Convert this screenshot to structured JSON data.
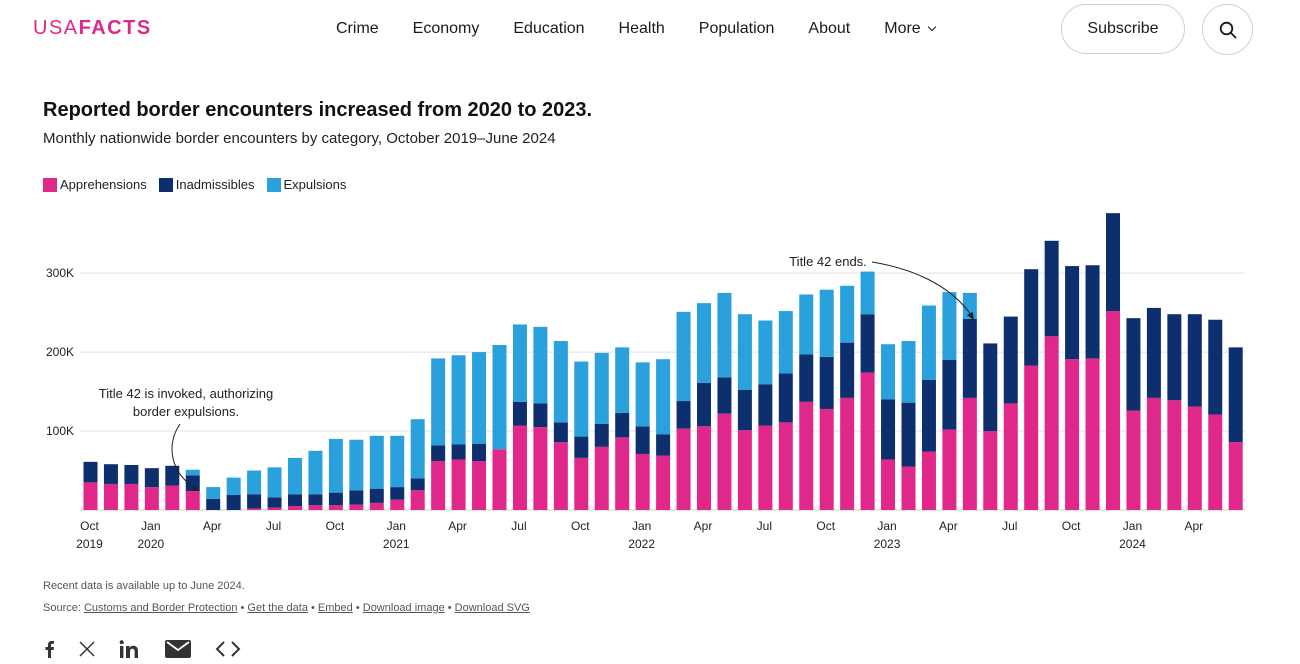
{
  "header": {
    "logo_light": "USA",
    "logo_bold": "FACTS",
    "nav": [
      "Crime",
      "Economy",
      "Education",
      "Health",
      "Population",
      "About",
      "More"
    ],
    "subscribe_label": "Subscribe"
  },
  "chart_title": "Reported border encounters increased from 2020 to 2023.",
  "chart_subtitle": "Monthly nationwide border encounters by category, October 2019–June 2024",
  "footer": {
    "note": "Recent data is available up to June 2024.",
    "source_prefix": "Source: ",
    "source_link": "Customs and Border Protection",
    "links": [
      "Get the data",
      "Embed",
      "Download image",
      "Download SVG"
    ],
    "separator": " • "
  },
  "colors": {
    "apprehensions": "#e0288a",
    "inadmissibles": "#0d2f6e",
    "expulsions": "#2aa0dc"
  },
  "chart_data": {
    "type": "bar",
    "stacked": true,
    "ylim": [
      0,
      380000
    ],
    "yticks": [
      100000,
      200000,
      300000
    ],
    "ytick_labels": [
      "100K",
      "200K",
      "300K"
    ],
    "grid": true,
    "legend_position": "top-left",
    "categories": [
      "Oct 2019",
      "Nov 2019",
      "Dec 2019",
      "Jan 2020",
      "Feb 2020",
      "Mar 2020",
      "Apr 2020",
      "May 2020",
      "Jun 2020",
      "Jul 2020",
      "Aug 2020",
      "Sep 2020",
      "Oct 2020",
      "Nov 2020",
      "Dec 2020",
      "Jan 2021",
      "Feb 2021",
      "Mar 2021",
      "Apr 2021",
      "May 2021",
      "Jun 2021",
      "Jul 2021",
      "Aug 2021",
      "Sep 2021",
      "Oct 2021",
      "Nov 2021",
      "Dec 2021",
      "Jan 2022",
      "Feb 2022",
      "Mar 2022",
      "Apr 2022",
      "May 2022",
      "Jun 2022",
      "Jul 2022",
      "Aug 2022",
      "Sep 2022",
      "Oct 2022",
      "Nov 2022",
      "Dec 2022",
      "Jan 2023",
      "Feb 2023",
      "Mar 2023",
      "Apr 2023",
      "May 2023",
      "Jun 2023",
      "Jul 2023",
      "Aug 2023",
      "Sep 2023",
      "Oct 2023",
      "Nov 2023",
      "Dec 2023",
      "Jan 2024",
      "Feb 2024",
      "Mar 2024",
      "Apr 2024",
      "May 2024",
      "Jun 2024"
    ],
    "x_tick_labels": [
      {
        "index": 0,
        "month": "Oct",
        "year": "2019"
      },
      {
        "index": 3,
        "month": "Jan",
        "year": "2020"
      },
      {
        "index": 6,
        "month": "Apr",
        "year": ""
      },
      {
        "index": 9,
        "month": "Jul",
        "year": ""
      },
      {
        "index": 12,
        "month": "Oct",
        "year": ""
      },
      {
        "index": 15,
        "month": "Jan",
        "year": "2021"
      },
      {
        "index": 18,
        "month": "Apr",
        "year": ""
      },
      {
        "index": 21,
        "month": "Jul",
        "year": ""
      },
      {
        "index": 24,
        "month": "Oct",
        "year": ""
      },
      {
        "index": 27,
        "month": "Jan",
        "year": "2022"
      },
      {
        "index": 30,
        "month": "Apr",
        "year": ""
      },
      {
        "index": 33,
        "month": "Jul",
        "year": ""
      },
      {
        "index": 36,
        "month": "Oct",
        "year": ""
      },
      {
        "index": 39,
        "month": "Jan",
        "year": "2023"
      },
      {
        "index": 42,
        "month": "Apr",
        "year": ""
      },
      {
        "index": 45,
        "month": "Jul",
        "year": ""
      },
      {
        "index": 48,
        "month": "Oct",
        "year": ""
      },
      {
        "index": 51,
        "month": "Jan",
        "year": "2024"
      },
      {
        "index": 54,
        "month": "Apr",
        "year": ""
      }
    ],
    "series": [
      {
        "name": "Apprehensions",
        "values": [
          35000,
          33000,
          33000,
          29000,
          31000,
          24000,
          0,
          0,
          2000,
          3000,
          5000,
          6000,
          6000,
          7000,
          9000,
          13000,
          25000,
          62000,
          64000,
          62000,
          77000,
          107000,
          105000,
          86000,
          66000,
          80000,
          92000,
          71000,
          69000,
          103000,
          106000,
          122000,
          101000,
          107000,
          111000,
          137000,
          128000,
          142000,
          174000,
          64000,
          55000,
          74000,
          102000,
          142000,
          100000,
          135000,
          183000,
          220000,
          191000,
          192000,
          252000,
          126000,
          142000,
          139000,
          131000,
          121000,
          86000
        ]
      },
      {
        "name": "Inadmissibles",
        "values": [
          26000,
          25000,
          24000,
          24000,
          25000,
          20000,
          14000,
          19000,
          18000,
          13000,
          15000,
          14000,
          16000,
          18000,
          18000,
          16000,
          15000,
          20000,
          19000,
          22000,
          0,
          30000,
          30000,
          25000,
          27000,
          29000,
          31000,
          35000,
          27000,
          35000,
          55000,
          46000,
          51000,
          52000,
          62000,
          60000,
          66000,
          70000,
          74000,
          76000,
          81000,
          91000,
          88000,
          100000,
          111000,
          110000,
          122000,
          121000,
          118000,
          118000,
          124000,
          117000,
          114000,
          109000,
          117000,
          120000,
          120000
        ]
      },
      {
        "name": "Expulsions",
        "values": [
          0,
          0,
          0,
          0,
          0,
          7000,
          15000,
          22000,
          30000,
          38000,
          46000,
          55000,
          68000,
          64000,
          67000,
          65000,
          75000,
          110000,
          113000,
          116000,
          132000,
          98000,
          97000,
          103000,
          95000,
          90000,
          83000,
          81000,
          95000,
          113000,
          101000,
          107000,
          96000,
          81000,
          79000,
          76000,
          85000,
          72000,
          54000,
          70000,
          78000,
          94000,
          86000,
          33000,
          0,
          0,
          0,
          0,
          0,
          0,
          0,
          0,
          0,
          0,
          0,
          0,
          0
        ]
      }
    ],
    "annotations": [
      {
        "text_lines": [
          "Title 42 is invoked, authorizing",
          "border expulsions."
        ],
        "target_index": 5
      },
      {
        "text_lines": [
          "Title 42 ends."
        ],
        "target_index": 43
      }
    ]
  }
}
